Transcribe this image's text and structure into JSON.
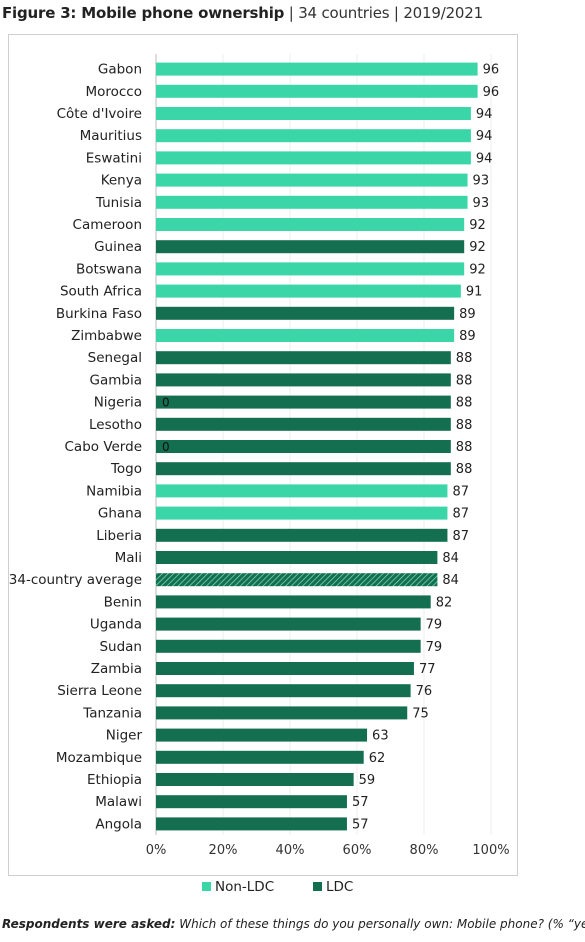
{
  "title": {
    "bold": "Figure 3: Mobile phone ownership",
    "rest": " | 34 countries | 2019/2021"
  },
  "footnote": {
    "label": "Respondents were asked:",
    "text": " Which of these things do you personally own: Mobile phone? (% “yes”)"
  },
  "colors": {
    "non_ldc": "#3ad6a7",
    "ldc": "#146e50",
    "average": "#146e50"
  },
  "chart_data": {
    "type": "bar",
    "orientation": "horizontal",
    "xlim": [
      0,
      100
    ],
    "x_ticks": [
      "0%",
      "20%",
      "40%",
      "60%",
      "80%",
      "100%"
    ],
    "legend": {
      "placement": "bottom",
      "entries": [
        "Non-LDC",
        "LDC"
      ]
    },
    "grid": true,
    "categories": [
      "Gabon",
      "Morocco",
      "Côte d'Ivoire",
      "Mauritius",
      "Eswatini",
      "Kenya",
      "Tunisia",
      "Cameroon",
      "Guinea",
      "Botswana",
      "South Africa",
      "Burkina Faso",
      "Zimbabwe",
      "Senegal",
      "Gambia",
      "Nigeria",
      "Lesotho",
      "Cabo Verde",
      "Togo",
      "Namibia",
      "Ghana",
      "Liberia",
      "Mali",
      "34-country average",
      "Benin",
      "Uganda",
      "Sudan",
      "Zambia",
      "Sierra Leone",
      "Tanzania",
      "Niger",
      "Mozambique",
      "Ethiopia",
      "Malawi",
      "Angola"
    ],
    "values": [
      96,
      96,
      94,
      94,
      94,
      93,
      93,
      92,
      92,
      92,
      91,
      89,
      89,
      88,
      88,
      88,
      88,
      88,
      88,
      87,
      87,
      87,
      84,
      84,
      82,
      79,
      79,
      77,
      76,
      75,
      63,
      62,
      59,
      57,
      57
    ],
    "group": [
      "non_ldc",
      "non_ldc",
      "non_ldc",
      "non_ldc",
      "non_ldc",
      "non_ldc",
      "non_ldc",
      "non_ldc",
      "ldc",
      "non_ldc",
      "non_ldc",
      "ldc",
      "non_ldc",
      "ldc",
      "ldc",
      "ldc",
      "ldc",
      "ldc",
      "ldc",
      "non_ldc",
      "non_ldc",
      "ldc",
      "ldc",
      "average",
      "ldc",
      "ldc",
      "ldc",
      "ldc",
      "ldc",
      "ldc",
      "ldc",
      "ldc",
      "ldc",
      "ldc",
      "ldc"
    ],
    "inner_labels": {
      "Nigeria": "0",
      "Cabo Verde": "0"
    }
  }
}
